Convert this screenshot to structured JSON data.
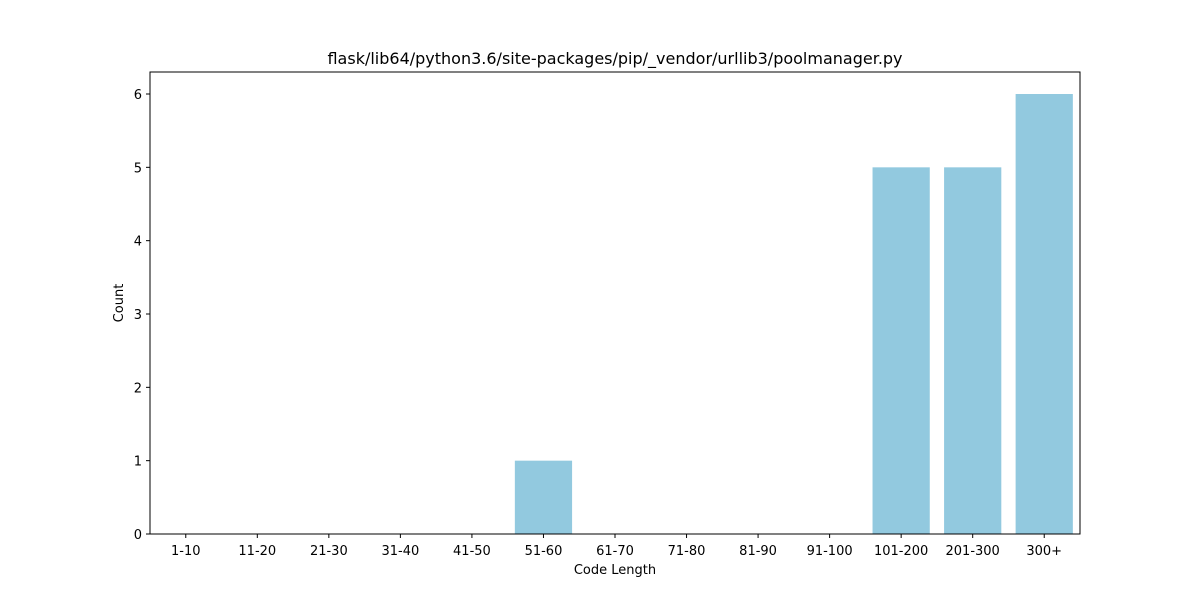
{
  "chart_data": {
    "type": "bar",
    "title": "flask/lib64/python3.6/site-packages/pip/_vendor/urllib3/poolmanager.py",
    "xlabel": "Code Length",
    "ylabel": "Count",
    "categories": [
      "1-10",
      "11-20",
      "21-30",
      "31-40",
      "41-50",
      "51-60",
      "61-70",
      "71-80",
      "81-90",
      "91-100",
      "101-200",
      "201-300",
      "300+"
    ],
    "values": [
      0,
      0,
      0,
      0,
      0,
      1,
      0,
      0,
      0,
      0,
      5,
      5,
      6
    ],
    "ylim": [
      0,
      6.3
    ],
    "yticks": [
      0,
      1,
      2,
      3,
      4,
      5,
      6
    ],
    "grid": false,
    "legend": "none",
    "bar_color": "#92c9df",
    "axis_color": "#000000"
  }
}
